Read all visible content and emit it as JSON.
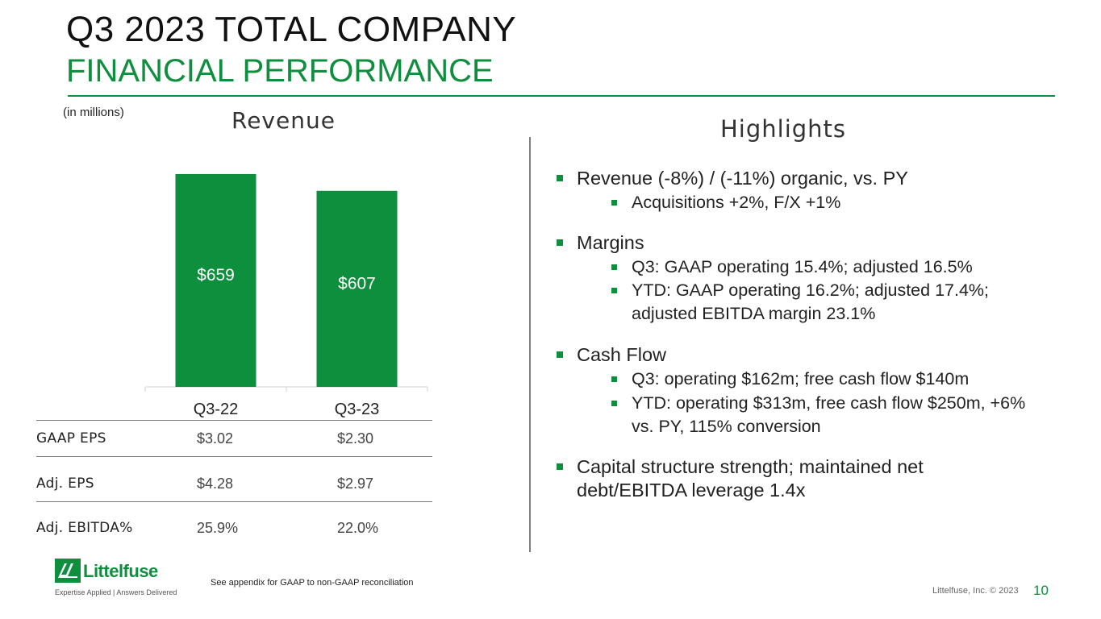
{
  "header": {
    "title": "Q3 2023 TOTAL COMPANY",
    "subtitle": "FINANCIAL PERFORMANCE",
    "units_note": "(in millions)"
  },
  "chart_data": {
    "type": "bar",
    "title": "Revenue",
    "categories": [
      "Q3-22",
      "Q3-23"
    ],
    "values": [
      659,
      607
    ],
    "value_labels": [
      "$659",
      "$607"
    ],
    "ylim": [
      0,
      700
    ],
    "bar_color": "#0e8f3e",
    "grid": false
  },
  "metrics": {
    "rows": [
      {
        "name": "GAAP EPS",
        "v1": "$3.02",
        "v2": "$2.30"
      },
      {
        "name": "Adj. EPS",
        "v1": "$4.28",
        "v2": "$2.97"
      },
      {
        "name": "Adj. EBITDA%",
        "v1": "25.9%",
        "v2": "22.0%"
      }
    ]
  },
  "highlights": {
    "title": "Highlights",
    "bullets": [
      {
        "text": [
          "Revenue (-8%) / (-11%) organic, vs. PY"
        ],
        "subs": [
          [
            "Acquisitions +2%, F/X +1%"
          ]
        ]
      },
      {
        "text": [
          "Margins"
        ],
        "subs": [
          [
            "Q3: GAAP operating 15.4%; adjusted 16.5%"
          ],
          [
            "YTD: GAAP operating 16.2%; adjusted 17.4%;",
            "adjusted EBITDA margin 23.1%"
          ]
        ]
      },
      {
        "text": [
          "Cash Flow"
        ],
        "subs": [
          [
            "Q3: operating $162m; free cash flow $140m"
          ],
          [
            "YTD: operating $313m, free cash flow $250m, +6%",
            "vs. PY, 115% conversion"
          ]
        ]
      },
      {
        "text": [
          "Capital structure strength; maintained net",
          "debt/EBITDA leverage 1.4x"
        ],
        "subs": []
      }
    ]
  },
  "footer": {
    "logo_text": "Littelfuse",
    "logo_tagline": "Expertise Applied | Answers Delivered",
    "footnote": "See appendix for GAAP to non-GAAP reconciliation",
    "copyright": "Littelfuse, Inc. © 2023",
    "page_number": "10"
  },
  "colors": {
    "accent": "#0e8f3e",
    "divider": "#7f7f7f"
  }
}
